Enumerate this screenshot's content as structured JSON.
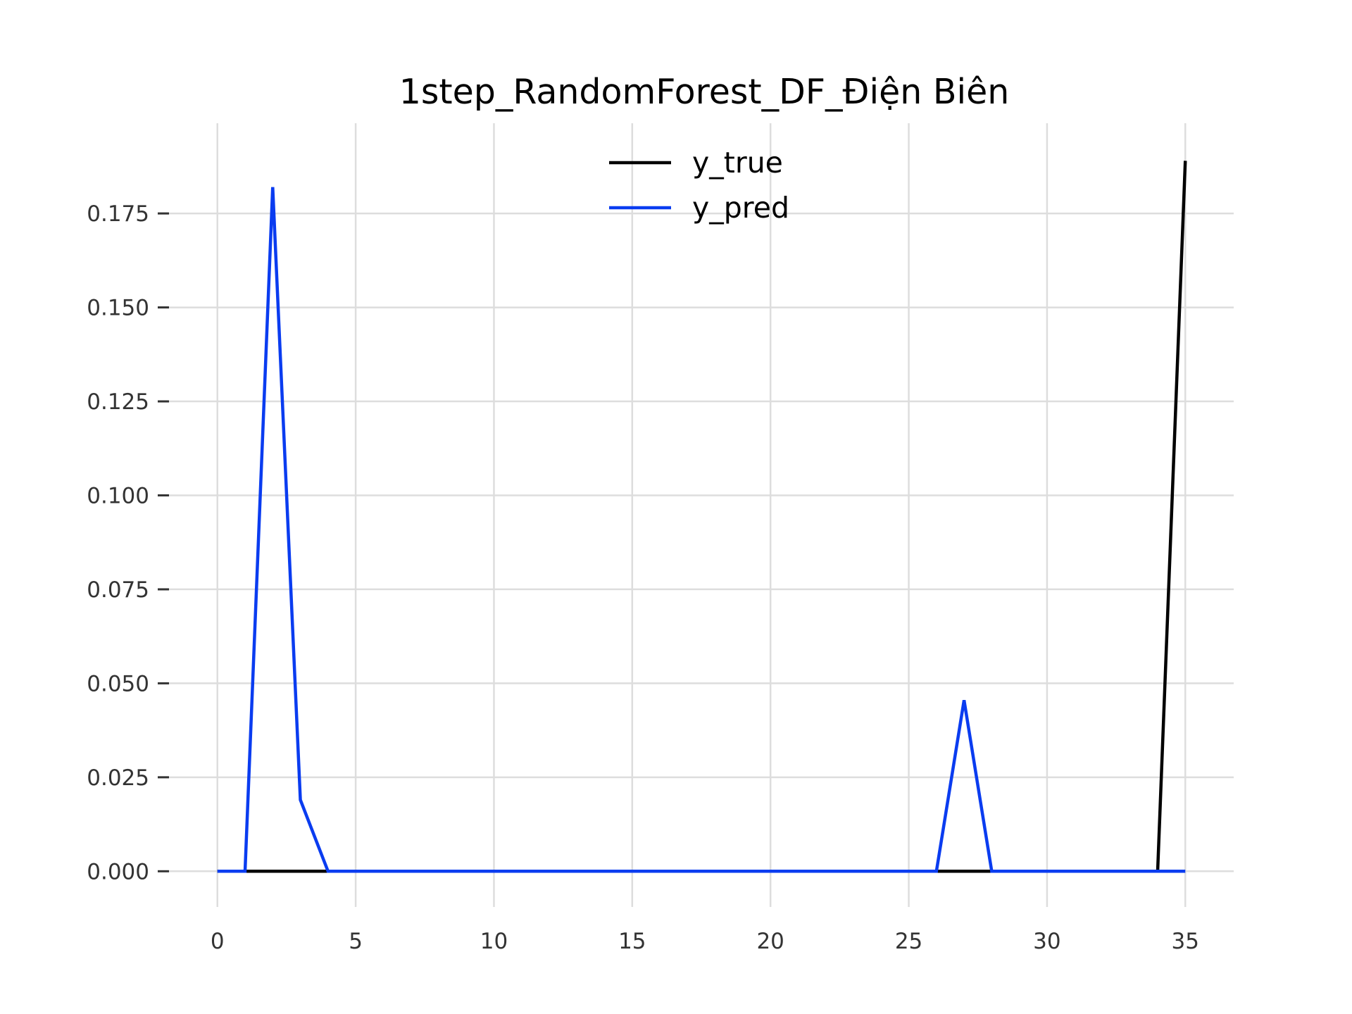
{
  "chart_data": {
    "type": "line",
    "title": "1step_RandomForest_DF_Điện Biên",
    "xlabel": "",
    "ylabel": "",
    "xlim": [
      -1.75,
      36.75
    ],
    "ylim": [
      -0.0095,
      0.199
    ],
    "xticks": [
      0,
      5,
      10,
      15,
      20,
      25,
      30,
      35
    ],
    "yticks": [
      0.0,
      0.025,
      0.05,
      0.075,
      0.1,
      0.125,
      0.15,
      0.175
    ],
    "ytick_labels": [
      "0.000",
      "0.025",
      "0.050",
      "0.075",
      "0.100",
      "0.125",
      "0.150",
      "0.175"
    ],
    "grid": true,
    "legend_position": "upper center",
    "x": [
      0,
      1,
      2,
      3,
      4,
      5,
      6,
      7,
      8,
      9,
      10,
      11,
      12,
      13,
      14,
      15,
      16,
      17,
      18,
      19,
      20,
      21,
      22,
      23,
      24,
      25,
      26,
      27,
      28,
      29,
      30,
      31,
      32,
      33,
      34,
      35
    ],
    "series": [
      {
        "name": "y_true",
        "color": "#000000",
        "values": [
          0,
          0,
          0,
          0,
          0,
          0,
          0,
          0,
          0,
          0,
          0,
          0,
          0,
          0,
          0,
          0,
          0,
          0,
          0,
          0,
          0,
          0,
          0,
          0,
          0,
          0,
          0,
          0,
          0,
          0,
          0,
          0,
          0,
          0,
          0,
          0.189
        ]
      },
      {
        "name": "y_pred",
        "color": "#0a3cf0",
        "values": [
          0,
          0,
          0.182,
          0.019,
          0,
          0,
          0,
          0,
          0,
          0,
          0,
          0,
          0,
          0,
          0,
          0,
          0,
          0,
          0,
          0,
          0,
          0,
          0,
          0,
          0,
          0,
          0,
          0.0455,
          0,
          0,
          0,
          0,
          0,
          0,
          0,
          0
        ]
      }
    ]
  }
}
